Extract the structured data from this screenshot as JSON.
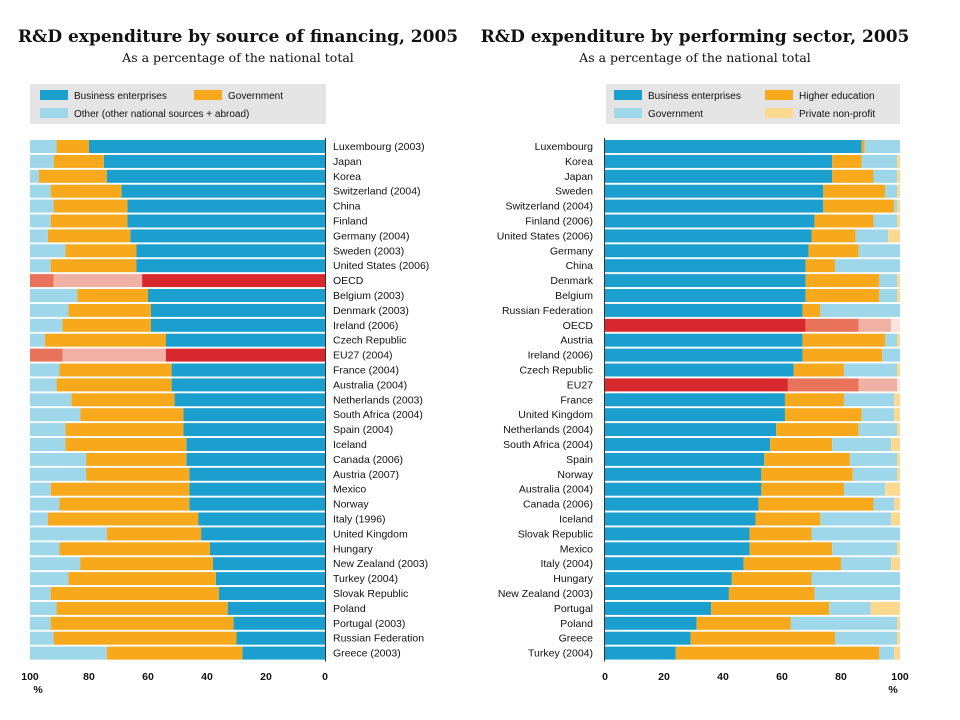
{
  "chart_data": [
    {
      "type": "bar",
      "orientation": "horizontal-stacked",
      "title": "R&D expenditure by source of financing, 2005",
      "subtitle": "As a percentage of the national total",
      "xlabel": "%",
      "xlim": [
        100,
        0
      ],
      "xticks": [
        "100",
        "80",
        "60",
        "40",
        "20",
        "0"
      ],
      "legend_placement": "top",
      "highlight_categories": [
        "OECD",
        "EU27 (2004)"
      ],
      "categories": [
        "Luxembourg (2003)",
        "Japan",
        "Korea",
        "Switzerland (2004)",
        "China",
        "Finland",
        "Germany (2004)",
        "Sweden (2003)",
        "United States (2006)",
        "OECD",
        "Belgium (2003)",
        "Denmark (2003)",
        "Ireland (2006)",
        "Czech Republic",
        "EU27 (2004)",
        "France (2004)",
        "Australia (2004)",
        "Netherlands (2003)",
        "South Africa (2004)",
        "Spain (2004)",
        "Iceland",
        "Canada (2006)",
        "Austria (2007)",
        "Mexico",
        "Norway",
        "Italy (1996)",
        "United Kingdom",
        "Hungary",
        "New Zealand (2003)",
        "Turkey (2004)",
        "Slovak Republic",
        "Poland",
        "Portugal (2003)",
        "Russian Federation",
        "Greece (2003)"
      ],
      "series": [
        {
          "name": "Business enterprises",
          "color": "#1a9fcf",
          "highlight_color": "#d8282d",
          "values": [
            80,
            75,
            74,
            69,
            67,
            67,
            66,
            64,
            64,
            62,
            60,
            59,
            59,
            54,
            54,
            52,
            52,
            51,
            48,
            48,
            47,
            47,
            46,
            46,
            46,
            43,
            42,
            39,
            38,
            37,
            36,
            33,
            31,
            30,
            28
          ]
        },
        {
          "name": "Government",
          "color": "#f7a81b",
          "highlight_color": "#f0b0a4",
          "values": [
            11,
            17,
            23,
            24,
            25,
            26,
            28,
            24,
            29,
            30,
            24,
            28,
            30,
            41,
            35,
            38,
            39,
            35,
            35,
            40,
            41,
            34,
            35,
            47,
            44,
            51,
            32,
            51,
            45,
            50,
            57,
            58,
            62,
            62,
            46
          ]
        },
        {
          "name": "Other (other national sources + abroad)",
          "color": "#9ed6ea",
          "highlight_color": "#e8735a",
          "values": [
            9,
            8,
            3,
            7,
            8,
            7,
            6,
            12,
            7,
            8,
            16,
            13,
            11,
            5,
            11,
            10,
            9,
            14,
            17,
            12,
            12,
            19,
            19,
            7,
            10,
            6,
            26,
            10,
            17,
            13,
            7,
            9,
            7,
            8,
            26
          ]
        }
      ]
    },
    {
      "type": "bar",
      "orientation": "horizontal-stacked",
      "title": "R&D expenditure by performing sector, 2005",
      "subtitle": "As a percentage of the national total",
      "xlabel": "%",
      "xlim": [
        0,
        100
      ],
      "xticks": [
        "0",
        "20",
        "40",
        "60",
        "80",
        "100"
      ],
      "legend_placement": "top",
      "highlight_categories": [
        "OECD",
        "EU27"
      ],
      "categories": [
        "Luxembourg",
        "Korea",
        "Japan",
        "Sweden",
        "Switzerland (2004)",
        "Finland (2006)",
        "United States (2006)",
        "Germany",
        "China",
        "Denmark",
        "Belgium",
        "Russian Federation",
        "OECD",
        "Austria",
        "Ireland (2006)",
        "Czech Republic",
        "EU27",
        "France",
        "United Kingdom",
        "Netherlands (2004)",
        "South Africa (2004)",
        "Spain",
        "Norway",
        "Australia (2004)",
        "Canada (2006)",
        "Iceland",
        "Slovak Republic",
        "Mexico",
        "Italy (2004)",
        "Hungary",
        "New Zealand (2003)",
        "Portugal",
        "Poland",
        "Greece",
        "Turkey (2004)"
      ],
      "series": [
        {
          "name": "Business enterprises",
          "color": "#1a9fcf",
          "highlight_color": "#d8282d",
          "values": [
            87,
            77,
            77,
            74,
            74,
            71,
            70,
            69,
            68,
            68,
            68,
            67,
            68,
            67,
            67,
            64,
            62,
            61,
            61,
            58,
            56,
            54,
            53,
            53,
            52,
            51,
            49,
            49,
            47,
            43,
            42,
            36,
            31,
            29,
            24
          ]
        },
        {
          "name": "Higher education",
          "color": "#f7a81b",
          "highlight_color": "#e8735a",
          "values": [
            1,
            10,
            14,
            21,
            24,
            20,
            15,
            17,
            10,
            25,
            25,
            6,
            18,
            28,
            27,
            17,
            24,
            20,
            26,
            28,
            21,
            29,
            31,
            28,
            39,
            22,
            21,
            28,
            33,
            27,
            29,
            40,
            32,
            49,
            69
          ]
        },
        {
          "name": "Government",
          "color": "#9ed6ea",
          "highlight_color": "#f0b0a4",
          "values": [
            12,
            12,
            8,
            4,
            1,
            8,
            11,
            14,
            22,
            6,
            6,
            27,
            11,
            4,
            6,
            18,
            13,
            17,
            11,
            13,
            20,
            16,
            15,
            14,
            7,
            24,
            30,
            22,
            17,
            30,
            29,
            14,
            36,
            21,
            5
          ]
        },
        {
          "name": "Private non-profit",
          "color": "#fcd98e",
          "highlight_color": "#fbe3dc",
          "values": [
            0,
            1,
            1,
            1,
            1,
            1,
            4,
            0,
            0,
            1,
            1,
            0,
            3,
            1,
            0,
            1,
            1,
            2,
            2,
            1,
            3,
            1,
            1,
            5,
            2,
            3,
            0,
            1,
            3,
            0,
            0,
            10,
            1,
            1,
            2
          ]
        }
      ]
    }
  ]
}
